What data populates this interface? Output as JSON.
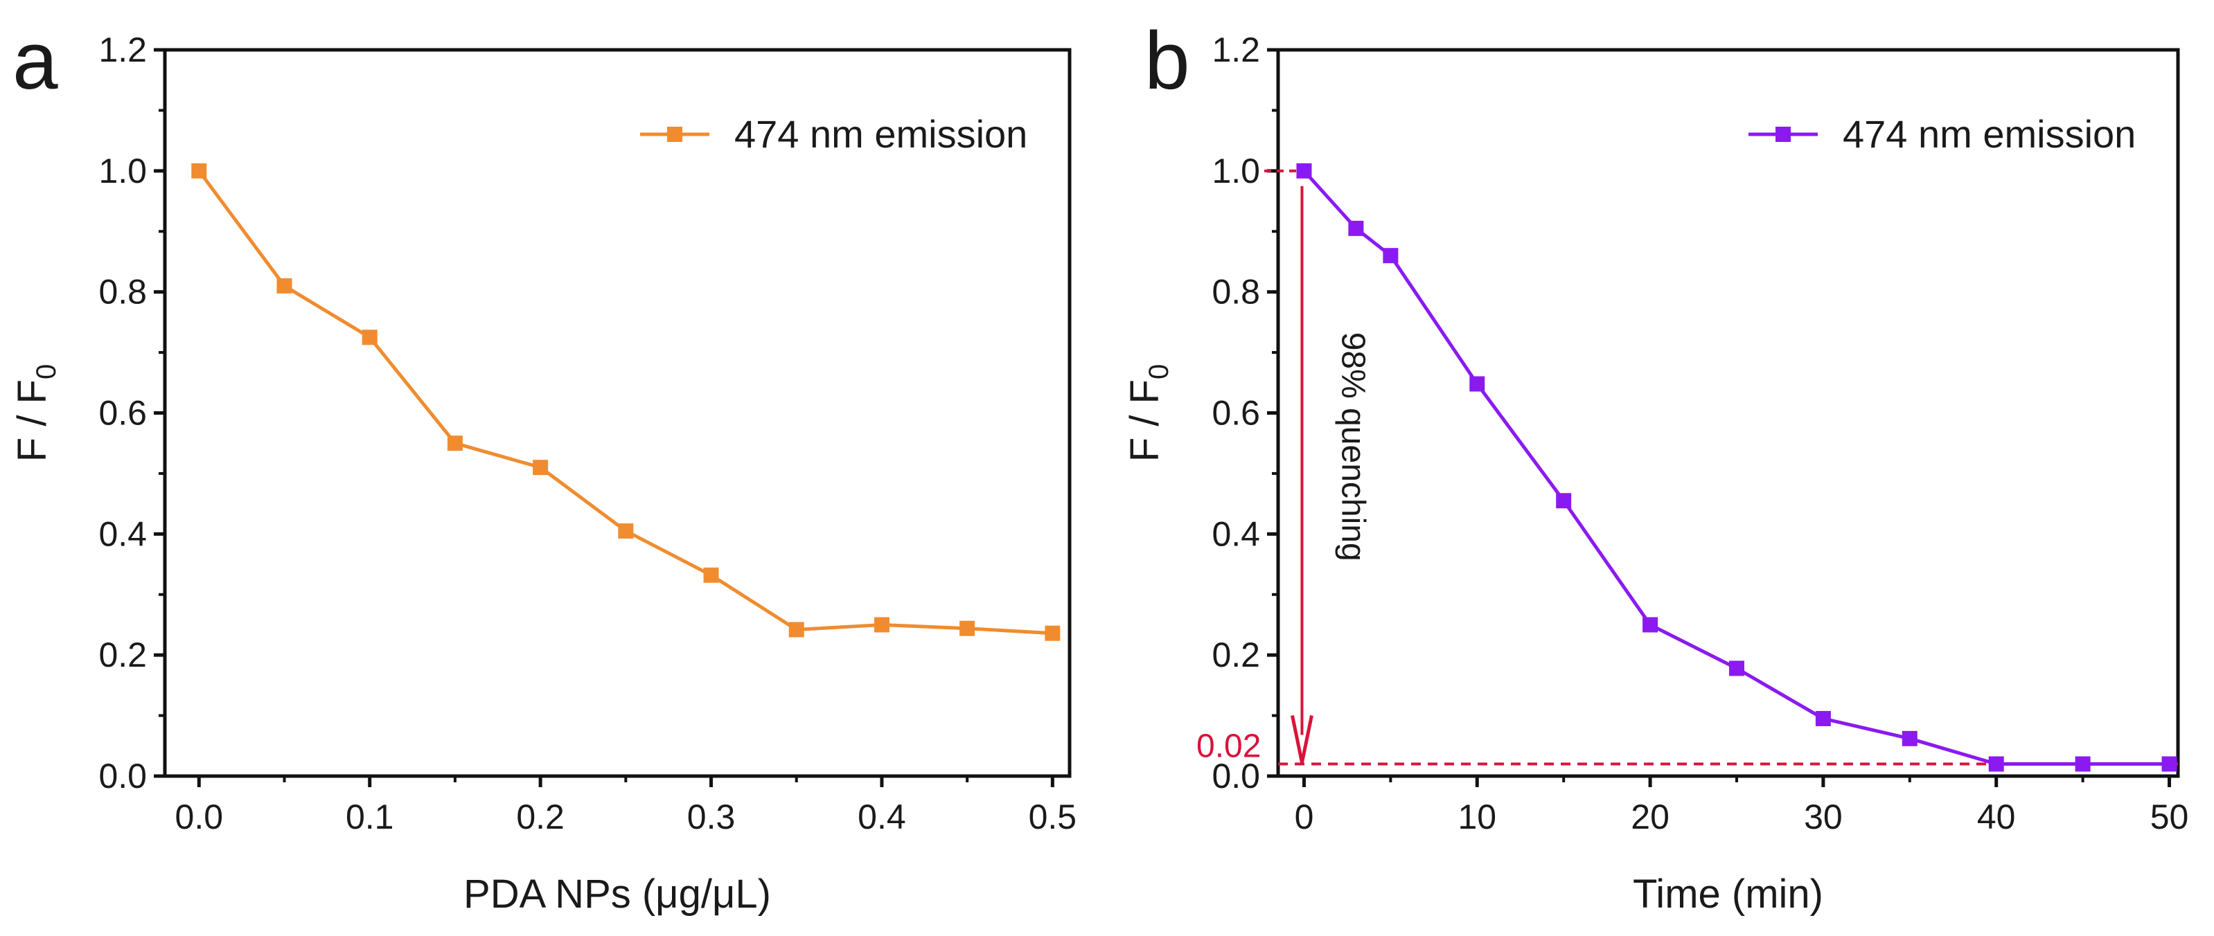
{
  "chart_data": [
    {
      "panel": "a",
      "type": "line",
      "xlabel": "PDA NPs (μg/μL)",
      "ylabel": "F / F",
      "ylabel_subscript": "0",
      "xlim": [
        -0.02,
        0.51
      ],
      "ylim": [
        0,
        1.2
      ],
      "xticks": [
        "0.0",
        "0.1",
        "0.2",
        "0.3",
        "0.4",
        "0.5"
      ],
      "xtick_values": [
        0.0,
        0.1,
        0.2,
        0.3,
        0.4,
        0.5
      ],
      "yticks": [
        "0.0",
        "0.2",
        "0.4",
        "0.6",
        "0.8",
        "1.0",
        "1.2"
      ],
      "ytick_values": [
        0.0,
        0.2,
        0.4,
        0.6,
        0.8,
        1.0,
        1.2
      ],
      "legend_position": "top-right",
      "series": [
        {
          "name": "474 nm emission",
          "color": "#F08C2F",
          "marker": "square",
          "x": [
            0.0,
            0.05,
            0.1,
            0.15,
            0.2,
            0.25,
            0.3,
            0.35,
            0.4,
            0.45,
            0.5
          ],
          "y": [
            1.0,
            0.81,
            0.725,
            0.55,
            0.51,
            0.405,
            0.332,
            0.242,
            0.25,
            0.244,
            0.236
          ]
        }
      ]
    },
    {
      "panel": "b",
      "type": "line",
      "xlabel": "Time (min)",
      "ylabel": "F / F",
      "ylabel_subscript": "0",
      "xlim": [
        -1.5,
        50.5
      ],
      "ylim": [
        0,
        1.2
      ],
      "xticks": [
        "0",
        "10",
        "20",
        "30",
        "40",
        "50"
      ],
      "xtick_values": [
        0,
        10,
        20,
        30,
        40,
        50
      ],
      "yticks": [
        "0.0",
        "0.2",
        "0.4",
        "0.6",
        "0.8",
        "1.0",
        "1.2"
      ],
      "ytick_values": [
        0.0,
        0.2,
        0.4,
        0.6,
        0.8,
        1.0,
        1.2
      ],
      "legend_position": "top-right",
      "series": [
        {
          "name": "474 nm emission",
          "color": "#8B1AF0",
          "marker": "square",
          "x": [
            0,
            3,
            5,
            10,
            15,
            20,
            25,
            30,
            35,
            40,
            45,
            50
          ],
          "y": [
            1.0,
            0.905,
            0.86,
            0.648,
            0.455,
            0.25,
            0.178,
            0.095,
            0.062,
            0.02,
            0.02,
            0.02
          ]
        }
      ],
      "annotations": {
        "arrow_label": "98% quenching",
        "arrow_from": [
          0,
          1.0
        ],
        "arrow_to": [
          0,
          0.02
        ],
        "reference_line_value": 0.02,
        "reference_label": "0.02",
        "annotation_color": "#D9133B"
      }
    }
  ]
}
